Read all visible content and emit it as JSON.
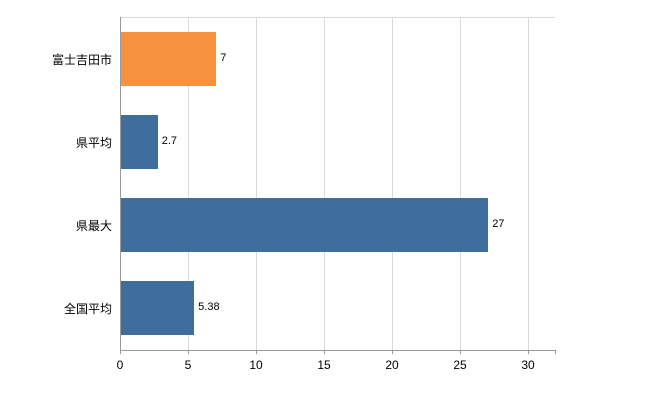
{
  "chart_data": {
    "type": "bar",
    "orientation": "horizontal",
    "title": "",
    "xlabel": "",
    "ylabel": "",
    "categories": [
      "富士吉田市",
      "県平均",
      "県最大",
      "全国平均"
    ],
    "values": [
      7,
      2.7,
      27,
      5.38
    ],
    "value_labels": [
      "7",
      "2.7",
      "27",
      "5.38"
    ],
    "bar_colors": [
      "#f6923d",
      "#3e6d9e",
      "#3e6d9e",
      "#3e6d9e"
    ],
    "xlim": [
      0,
      30
    ],
    "x_ticks": [
      0,
      5,
      10,
      15,
      20,
      25,
      30
    ],
    "grid": "vertical",
    "legend": "none",
    "colors": {
      "grid": "#d9d9d9",
      "axis": "#999999",
      "text": "#000000",
      "background": "#ffffff"
    }
  }
}
